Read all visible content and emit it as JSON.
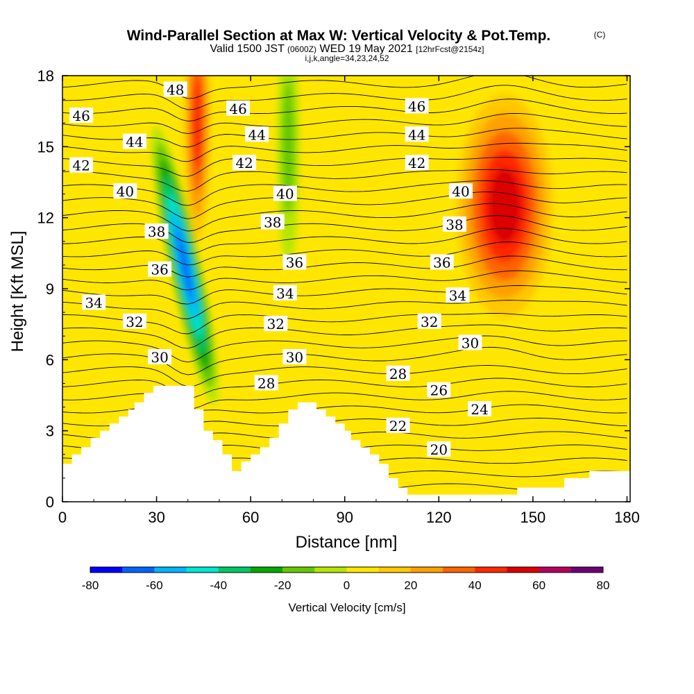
{
  "header": {
    "title": "Wind-Parallel Section at Max W: Vertical Velocity & Pot.Temp.",
    "copyright": "(C)",
    "valid_prefix": "Valid 1500 JST",
    "valid_utc": "(0600Z)",
    "valid_date": "WED 19 May 2021",
    "forecast": "[12hrFcst@2154z]",
    "indices": "i,j,k,angle=34,23,24,52"
  },
  "chart_data": {
    "type": "heatmap",
    "title": "Wind-Parallel Section at Max W: Vertical Velocity & Pot.Temp.",
    "xlabel": "Distance [nm]",
    "ylabel": "Height [Kft MSL]",
    "xlim": [
      0,
      181
    ],
    "ylim": [
      0,
      18
    ],
    "x_ticks": [
      "0",
      "30",
      "60",
      "90",
      "120",
      "150",
      "180"
    ],
    "y_ticks": [
      "0",
      "3",
      "6",
      "9",
      "12",
      "15",
      "18"
    ],
    "colorbar": {
      "label": "Vertical Velocity [cm/s]",
      "min": -80,
      "max": 80,
      "step": 10,
      "tick_labels": [
        "-80",
        "-60",
        "-40",
        "-20",
        "0",
        "20",
        "40",
        "60",
        "80"
      ],
      "colors": [
        "#0000ff",
        "#0064ff",
        "#00b4ff",
        "#00e6d2",
        "#00c864",
        "#00aa00",
        "#64c800",
        "#b4e600",
        "#ffe600",
        "#ffc800",
        "#ffa000",
        "#ff6400",
        "#ff2800",
        "#dc0000",
        "#b4005a",
        "#6e0078"
      ]
    },
    "w_features": [
      {
        "kind": "updraft",
        "x": 141,
        "y": 12.5,
        "peak_w": 65
      },
      {
        "kind": "updraft",
        "x": 43,
        "y": 16,
        "peak_w": 50
      },
      {
        "kind": "downdraft",
        "x": 39,
        "y": 10,
        "peak_w": -75
      },
      {
        "kind": "downdraft",
        "x": 72,
        "y": 15,
        "peak_w": -25
      }
    ],
    "contour_labels": [
      {
        "text": "48",
        "x": 36,
        "y": 17.4
      },
      {
        "text": "46",
        "x": 6,
        "y": 16.3
      },
      {
        "text": "46",
        "x": 56,
        "y": 16.6
      },
      {
        "text": "46",
        "x": 113,
        "y": 16.7
      },
      {
        "text": "44",
        "x": 23,
        "y": 15.2
      },
      {
        "text": "44",
        "x": 62,
        "y": 15.5
      },
      {
        "text": "44",
        "x": 113,
        "y": 15.5
      },
      {
        "text": "42",
        "x": 6,
        "y": 14.2
      },
      {
        "text": "42",
        "x": 58,
        "y": 14.3
      },
      {
        "text": "42",
        "x": 113,
        "y": 14.3
      },
      {
        "text": "40",
        "x": 20,
        "y": 13.1
      },
      {
        "text": "40",
        "x": 71,
        "y": 13.0
      },
      {
        "text": "40",
        "x": 127,
        "y": 13.1
      },
      {
        "text": "38",
        "x": 30,
        "y": 11.4
      },
      {
        "text": "38",
        "x": 67,
        "y": 11.8
      },
      {
        "text": "38",
        "x": 125,
        "y": 11.7
      },
      {
        "text": "36",
        "x": 31,
        "y": 9.8
      },
      {
        "text": "36",
        "x": 74,
        "y": 10.1
      },
      {
        "text": "36",
        "x": 121,
        "y": 10.1
      },
      {
        "text": "34",
        "x": 10,
        "y": 8.4
      },
      {
        "text": "34",
        "x": 71,
        "y": 8.8
      },
      {
        "text": "34",
        "x": 126,
        "y": 8.7
      },
      {
        "text": "32",
        "x": 23,
        "y": 7.6
      },
      {
        "text": "32",
        "x": 68,
        "y": 7.5
      },
      {
        "text": "32",
        "x": 117,
        "y": 7.6
      },
      {
        "text": "30",
        "x": 31,
        "y": 6.1
      },
      {
        "text": "30",
        "x": 74,
        "y": 6.1
      },
      {
        "text": "30",
        "x": 130,
        "y": 6.7
      },
      {
        "text": "28",
        "x": 65,
        "y": 5.0
      },
      {
        "text": "28",
        "x": 107,
        "y": 5.4
      },
      {
        "text": "26",
        "x": 120,
        "y": 4.7
      },
      {
        "text": "24",
        "x": 133,
        "y": 3.9
      },
      {
        "text": "22",
        "x": 107,
        "y": 3.2
      },
      {
        "text": "20",
        "x": 120,
        "y": 2.2
      }
    ],
    "terrain_profile": [
      [
        0,
        1.6
      ],
      [
        3,
        1.6
      ],
      [
        3,
        2.0
      ],
      [
        6,
        2.0
      ],
      [
        6,
        2.3
      ],
      [
        9,
        2.3
      ],
      [
        9,
        2.7
      ],
      [
        12,
        2.7
      ],
      [
        12,
        3.0
      ],
      [
        15,
        3.0
      ],
      [
        15,
        3.3
      ],
      [
        18,
        3.3
      ],
      [
        18,
        3.6
      ],
      [
        21,
        3.6
      ],
      [
        21,
        3.9
      ],
      [
        23,
        3.9
      ],
      [
        23,
        4.2
      ],
      [
        26,
        4.2
      ],
      [
        26,
        4.6
      ],
      [
        29,
        4.6
      ],
      [
        29,
        4.9
      ],
      [
        42,
        4.9
      ],
      [
        42,
        3.9
      ],
      [
        45,
        3.9
      ],
      [
        45,
        3.0
      ],
      [
        48,
        3.0
      ],
      [
        48,
        2.6
      ],
      [
        51,
        2.6
      ],
      [
        51,
        2.0
      ],
      [
        54,
        2.0
      ],
      [
        54,
        1.3
      ],
      [
        57,
        1.3
      ],
      [
        57,
        1.7
      ],
      [
        60,
        1.7
      ],
      [
        60,
        2.0
      ],
      [
        63,
        2.0
      ],
      [
        63,
        2.3
      ],
      [
        66,
        2.3
      ],
      [
        66,
        2.7
      ],
      [
        69,
        2.7
      ],
      [
        69,
        3.3
      ],
      [
        72,
        3.3
      ],
      [
        72,
        3.9
      ],
      [
        75,
        3.9
      ],
      [
        75,
        4.2
      ],
      [
        81,
        4.2
      ],
      [
        81,
        3.9
      ],
      [
        84,
        3.9
      ],
      [
        84,
        3.6
      ],
      [
        87,
        3.6
      ],
      [
        87,
        3.3
      ],
      [
        90,
        3.3
      ],
      [
        90,
        3.0
      ],
      [
        92,
        3.0
      ],
      [
        92,
        2.6
      ],
      [
        95,
        2.6
      ],
      [
        95,
        2.3
      ],
      [
        98,
        2.3
      ],
      [
        98,
        2.0
      ],
      [
        101,
        2.0
      ],
      [
        101,
        1.6
      ],
      [
        104,
        1.6
      ],
      [
        104,
        1.0
      ],
      [
        107,
        1.0
      ],
      [
        107,
        0.6
      ],
      [
        110,
        0.6
      ],
      [
        110,
        0.3
      ],
      [
        145,
        0.3
      ],
      [
        145,
        0.6
      ],
      [
        160,
        0.6
      ],
      [
        160,
        1.0
      ],
      [
        168,
        1.0
      ],
      [
        168,
        1.3
      ],
      [
        181,
        1.3
      ]
    ]
  }
}
